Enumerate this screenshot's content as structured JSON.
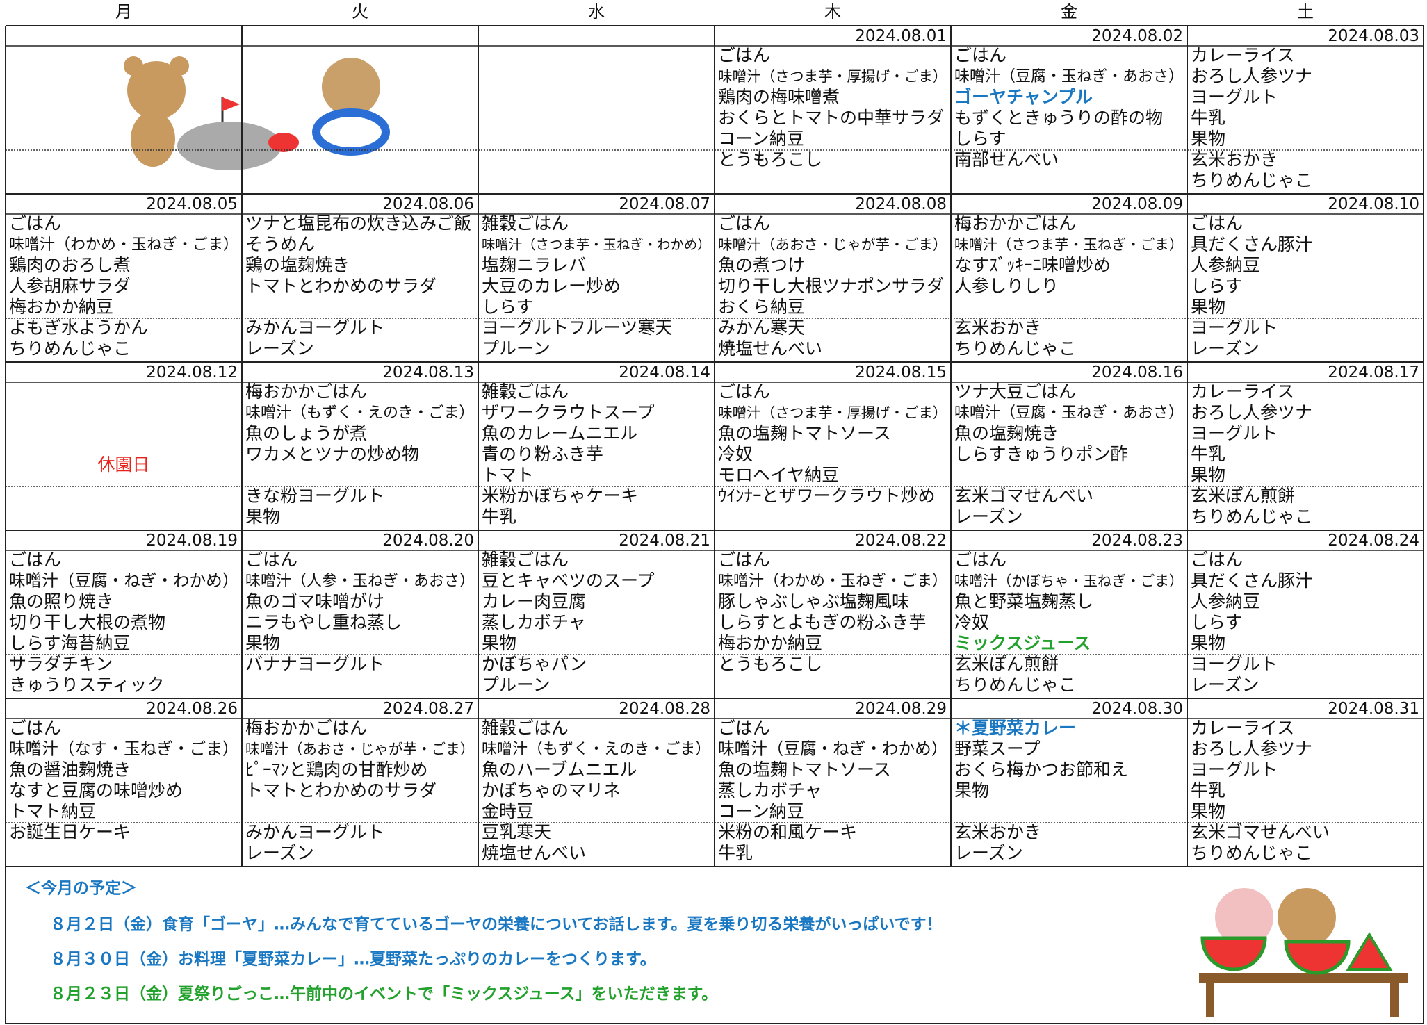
{
  "weekdays": [
    "月",
    "火",
    "水",
    "木",
    "金",
    "土"
  ],
  "weeks": [
    [
      null,
      null,
      null,
      {
        "date": "2024.08.01",
        "lunch": [
          "ごはん",
          "味噌汁（さつま芋・厚揚げ・ごま）",
          "鶏肉の梅味噌煮",
          "おくらとトマトの中華サラダ",
          "コーン納豆"
        ],
        "snack": [
          "とうもろこし"
        ]
      },
      {
        "date": "2024.08.02",
        "lunch": [
          "ごはん",
          "味噌汁（豆腐・玉ねぎ・あおさ）",
          {
            "text": "ゴーヤチャンプル",
            "color": "#1a78c2"
          },
          "もずくときゅうりの酢の物",
          "しらす"
        ],
        "snack": [
          "南部せんべい"
        ]
      },
      {
        "date": "2024.08.03",
        "lunch": [
          "カレーライス",
          "おろし人参ツナ",
          "ヨーグルト",
          "牛乳",
          "果物"
        ],
        "snack": [
          "玄米おかき",
          "ちりめんじゃこ"
        ]
      }
    ],
    [
      {
        "date": "2024.08.05",
        "lunch": [
          "ごはん",
          "味噌汁（わかめ・玉ねぎ・ごま）",
          "鶏肉のおろし煮",
          "人参胡麻サラダ",
          "梅おかか納豆"
        ],
        "snack": [
          "よもぎ水ようかん",
          "ちりめんじゃこ"
        ]
      },
      {
        "date": "2024.08.06",
        "lunch": [
          "ツナと塩昆布の炊き込みご飯",
          "そうめん",
          "鶏の塩麹焼き",
          "トマトとわかめのサラダ"
        ],
        "snack": [
          "みかんヨーグルト",
          "レーズン"
        ]
      },
      {
        "date": "2024.08.07",
        "lunch": [
          "雑穀ごはん",
          "味噌汁（さつま芋・玉ねぎ・わかめ）",
          "塩麹ニラレバ",
          "大豆のカレー炒め",
          "しらす"
        ],
        "snack": [
          "ヨーグルトフルーツ寒天",
          "プルーン"
        ]
      },
      {
        "date": "2024.08.08",
        "lunch": [
          "ごはん",
          "味噌汁（あおさ・じゃが芋・ごま）",
          "魚の煮つけ",
          "切り干し大根ツナポンサラダ",
          "おくら納豆"
        ],
        "snack": [
          "みかん寒天",
          "焼塩せんべい"
        ]
      },
      {
        "date": "2024.08.09",
        "lunch": [
          "梅おかかごはん",
          "味噌汁（さつま芋・玉ねぎ・ごま）",
          "なすｽﾞｯｷｰﾆ味噌炒め",
          "人参しりしり"
        ],
        "snack": [
          "玄米おかき",
          "ちりめんじゃこ"
        ]
      },
      {
        "date": "2024.08.10",
        "lunch": [
          "ごはん",
          "具だくさん豚汁",
          "人参納豆",
          "しらす",
          "果物"
        ],
        "snack": [
          "ヨーグルト",
          "レーズン"
        ]
      }
    ],
    [
      {
        "date": "2024.08.12",
        "note": {
          "text": "休園日",
          "color": "#e8231a"
        }
      },
      {
        "date": "2024.08.13",
        "lunch": [
          "梅おかかごはん",
          "味噌汁（もずく・えのき・ごま）",
          "魚のしょうが煮",
          "ワカメとツナの炒め物"
        ],
        "snack": [
          "きな粉ヨーグルト",
          "果物"
        ]
      },
      {
        "date": "2024.08.14",
        "lunch": [
          "雑穀ごはん",
          "ザワークラウトスープ",
          "魚のカレームニエル",
          "青のり粉ふき芋",
          "トマト"
        ],
        "snack": [
          "米粉かぼちゃケーキ",
          "牛乳"
        ]
      },
      {
        "date": "2024.08.15",
        "lunch": [
          "ごはん",
          "味噌汁（さつま芋・厚揚げ・ごま）",
          "魚の塩麹トマトソース",
          "冷奴",
          "モロヘイヤ納豆"
        ],
        "snack": [
          "ｳｲﾝﾅｰとザワークラウト炒め"
        ]
      },
      {
        "date": "2024.08.16",
        "lunch": [
          "ツナ大豆ごはん",
          "味噌汁（豆腐・玉ねぎ・あおさ）",
          "魚の塩麹焼き",
          "しらすきゅうりポン酢"
        ],
        "snack": [
          "玄米ゴマせんべい",
          "レーズン"
        ]
      },
      {
        "date": "2024.08.17",
        "lunch": [
          "カレーライス",
          "おろし人参ツナ",
          "ヨーグルト",
          "牛乳",
          "果物"
        ],
        "snack": [
          "玄米ぽん煎餅",
          "ちりめんじゃこ"
        ]
      }
    ],
    [
      {
        "date": "2024.08.19",
        "lunch": [
          "ごはん",
          "味噌汁（豆腐・ねぎ・わかめ）",
          "魚の照り焼き",
          "切り干し大根の煮物",
          "しらす海苔納豆"
        ],
        "snack": [
          "サラダチキン",
          "きゅうりスティック"
        ]
      },
      {
        "date": "2024.08.20",
        "lunch": [
          "ごはん",
          "味噌汁（人参・玉ねぎ・あおさ）",
          "魚のゴマ味噌がけ",
          "ニラもやし重ね蒸し",
          "果物"
        ],
        "snack": [
          "バナナヨーグルト"
        ]
      },
      {
        "date": "2024.08.21",
        "lunch": [
          "雑穀ごはん",
          "豆とキャベツのスープ",
          "カレー肉豆腐",
          "蒸しカボチャ",
          "果物"
        ],
        "snack": [
          "かぼちゃパン",
          "プルーン"
        ]
      },
      {
        "date": "2024.08.22",
        "lunch": [
          "ごはん",
          "味噌汁（わかめ・玉ねぎ・ごま）",
          "豚しゃぶしゃぶ塩麹風味",
          "しらすとよもぎの粉ふき芋",
          "梅おかか納豆"
        ],
        "snack": [
          "とうもろこし"
        ]
      },
      {
        "date": "2024.08.23",
        "lunch": [
          "ごはん",
          "味噌汁（かぼちゃ・玉ねぎ・ごま）",
          "魚と野菜塩麹蒸し",
          "冷奴",
          {
            "text": "ミックスジュース",
            "color": "#23a12d"
          }
        ],
        "snack": [
          "玄米ぽん煎餅",
          "ちりめんじゃこ"
        ]
      },
      {
        "date": "2024.08.24",
        "lunch": [
          "ごはん",
          "具だくさん豚汁",
          "人参納豆",
          "しらす",
          "果物"
        ],
        "snack": [
          "ヨーグルト",
          "レーズン"
        ]
      }
    ],
    [
      {
        "date": "2024.08.26",
        "lunch": [
          "ごはん",
          "味噌汁（なす・玉ねぎ・ごま）",
          "魚の醤油麹焼き",
          "なすと豆腐の味噌炒め",
          "トマト納豆"
        ],
        "snack": [
          "お誕生日ケーキ"
        ]
      },
      {
        "date": "2024.08.27",
        "lunch": [
          "梅おかかごはん",
          "味噌汁（あおさ・じゃが芋・ごま）",
          "ﾋﾟｰﾏﾝと鶏肉の甘酢炒め",
          "トマトとわかめのサラダ"
        ],
        "snack": [
          "みかんヨーグルト",
          "レーズン"
        ]
      },
      {
        "date": "2024.08.28",
        "lunch": [
          "雑穀ごはん",
          "味噌汁（もずく・えのき・ごま）",
          "魚のハーブムニエル",
          "かぼちゃのマリネ",
          "金時豆"
        ],
        "snack": [
          "豆乳寒天",
          "焼塩せんべい"
        ]
      },
      {
        "date": "2024.08.29",
        "lunch": [
          "ごはん",
          "味噌汁（豆腐・ねぎ・わかめ）",
          "魚の塩麹トマトソース",
          "蒸しカボチャ",
          "コーン納豆"
        ],
        "snack": [
          "米粉の和風ケーキ",
          "牛乳"
        ]
      },
      {
        "date": "2024.08.30",
        "lunch": [
          {
            "text": "＊夏野菜カレー",
            "color": "#1a78c2"
          },
          "野菜スープ",
          "おくら梅かつお節和え",
          "果物"
        ],
        "snack": [
          "玄米おかき",
          "レーズン"
        ]
      },
      {
        "date": "2024.08.31",
        "lunch": [
          "カレーライス",
          "おろし人参ツナ",
          "ヨーグルト",
          "牛乳",
          "果物"
        ],
        "snack": [
          "玄米ゴマせんべい",
          "ちりめんじゃこ"
        ]
      }
    ]
  ],
  "notes": {
    "heading": {
      "text": "＜今月の予定＞",
      "color": "#1a78c2"
    },
    "items": [
      {
        "text": "８月２日（金）食育「ゴーヤ」…みんなで育てているゴーヤの栄養についてお話します。夏を乗り切る栄養がいっぱいです！",
        "color": "#1a78c2"
      },
      {
        "text": "８月３０日（金）お料理「夏野菜カレー」…夏野菜たっぷりのカレーをつくります。",
        "color": "#1a78c2"
      },
      {
        "text": "８月２３日（金）夏祭りごっこ…午前中のイベントで「ミックスジュース」をいただきます。",
        "color": "#23a12d"
      }
    ]
  }
}
